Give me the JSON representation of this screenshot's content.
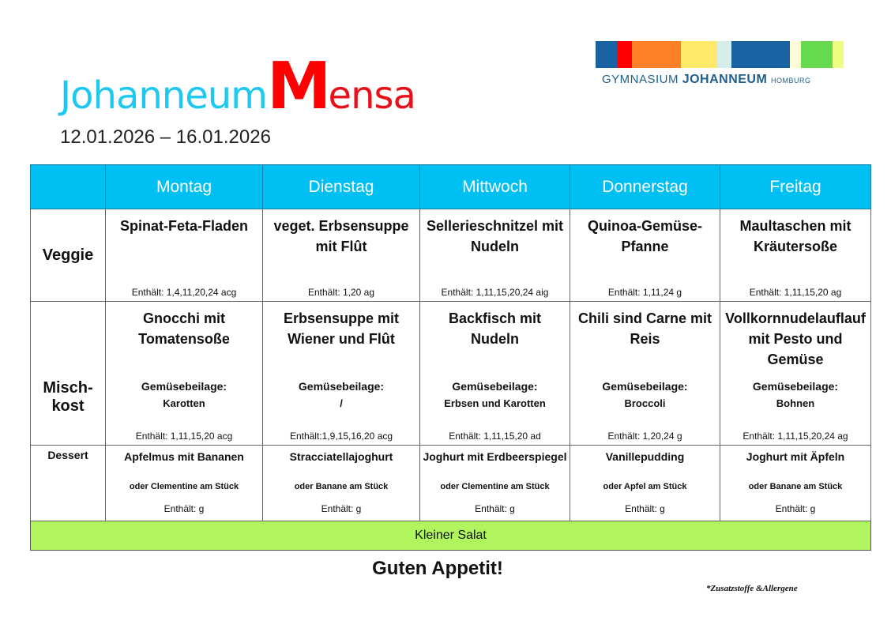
{
  "header": {
    "title_prefix": "Johanneum",
    "title_m": "M",
    "title_suffix": "ensa",
    "date_range": "12.01.2026 – 16.01.2026"
  },
  "logo": {
    "text_1": "GYMNASIUM",
    "text_2": "JOHANNEUM",
    "text_3": "HOMBURG",
    "colors": [
      "#1a63a3",
      "#ff0000",
      "#ff7f27",
      "#ffe96a",
      "#d6eeea",
      "#1a63a3",
      "#fffbd6",
      "#66d94f",
      "#eefc80"
    ]
  },
  "days": [
    "Montag",
    "Dienstag",
    "Mittwoch",
    "Donnerstag",
    "Freitag"
  ],
  "rows": {
    "veggie": "Veggie",
    "misch": "Misch-kost",
    "dessert": "Dessert"
  },
  "veggie": [
    {
      "dish": "Spinat-Feta-Fladen",
      "allergens": "Enthält: 1,4,11,20,24 acg"
    },
    {
      "dish": "veget. Erbsensuppe mit Flût",
      "allergens": "Enthält: 1,20 ag"
    },
    {
      "dish": "Sellerieschnitzel mit Nudeln",
      "allergens": "Enthält: 1,11,15,20,24 aig"
    },
    {
      "dish": "Quinoa-Gemüse-Pfanne",
      "allergens": "Enthält: 1,11,24 g"
    },
    {
      "dish": "Maultaschen mit Kräutersoße",
      "allergens": "Enthält: 1,11,15,20 ag"
    }
  ],
  "misch": [
    {
      "dish": "Gnocchi mit Tomatensoße",
      "side_label": "Gemüsebeilage:",
      "side": "Karotten",
      "allergens": "Enthält: 1,11,15,20 acg"
    },
    {
      "dish": "Erbsensuppe mit Wiener und Flût",
      "side_label": "Gemüsebeilage:",
      "side": "/",
      "allergens": "Enthält:1,9,15,16,20 acg"
    },
    {
      "dish": "Backfisch mit Nudeln",
      "side_label": "Gemüsebeilage:",
      "side": "Erbsen und Karotten",
      "allergens": "Enthält: 1,11,15,20 ad"
    },
    {
      "dish": "Chili sind Carne mit Reis",
      "side_label": "Gemüsebeilage:",
      "side": "Broccoli",
      "allergens": "Enthält: 1,20,24 g"
    },
    {
      "dish": "Vollkornnudelauflauf mit Pesto und Gemüse",
      "side_label": "Gemüsebeilage:",
      "side": "Bohnen",
      "allergens": "Enthält: 1,11,15,20,24 ag"
    }
  ],
  "dessert": [
    {
      "dish": "Apfelmus mit Bananen",
      "alt": "oder Clementine am Stück",
      "allergens": "Enthält:  g"
    },
    {
      "dish": "Stracciatellajoghurt",
      "alt": "oder Banane am Stück",
      "allergens": "Enthält:  g"
    },
    {
      "dish": "Joghurt mit Erdbeerspiegel",
      "alt": "oder Clementine am Stück",
      "allergens": "Enthält:  g"
    },
    {
      "dish": "Vanillepudding",
      "alt": "oder Apfel am Stück",
      "allergens": "Enthält:  g"
    },
    {
      "dish": "Joghurt mit Äpfeln",
      "alt": "oder Banane am Stück",
      "allergens": "Enthält:  g"
    }
  ],
  "salad": "Kleiner Salat",
  "footer": {
    "appetit": "Guten Appetit!",
    "note": "*Zusatzstoffe &Allergene"
  }
}
